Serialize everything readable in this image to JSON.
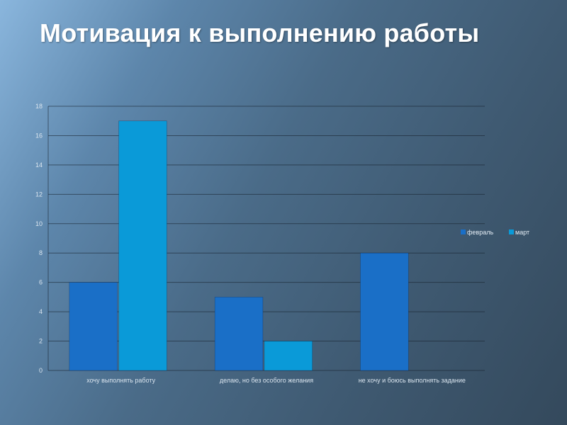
{
  "slide": {
    "title": "Мотивация к выполнению работы"
  },
  "chart_data": {
    "type": "bar",
    "title": "",
    "xlabel": "",
    "ylabel": "",
    "categories": [
      "хочу выполнять работу",
      "делаю, но без особого желания",
      "не хочу и боюсь выполнять задание"
    ],
    "series": [
      {
        "name": "февраль",
        "values": [
          6,
          5,
          8
        ],
        "color": "#1a6fc7"
      },
      {
        "name": "март",
        "values": [
          17,
          2,
          0
        ],
        "color": "#0a9ad8"
      }
    ],
    "ylim": [
      0,
      18
    ],
    "yticks": [
      0,
      2,
      4,
      6,
      8,
      10,
      12,
      14,
      16,
      18
    ],
    "grid": true,
    "legend_position": "right"
  }
}
